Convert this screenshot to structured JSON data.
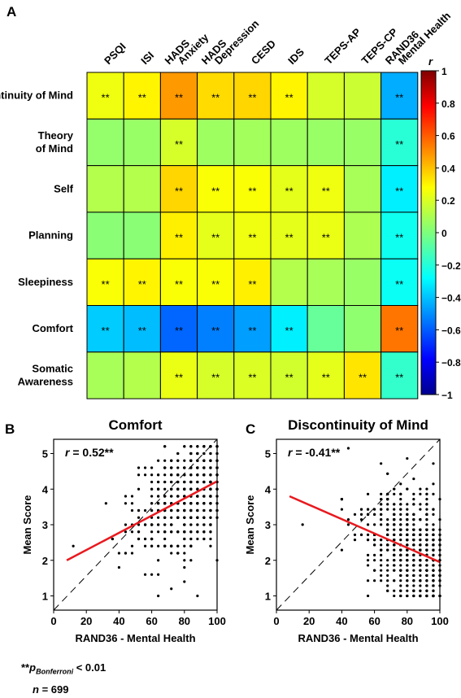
{
  "panels": {
    "a": "A",
    "b": "B",
    "c": "C"
  },
  "footnote": {
    "stars": "**",
    "p_symbol": "p",
    "p_subscript": "Bonferroni",
    "p_rest": "< 0.01",
    "n_symbol": "n",
    "n_rest": "= 699"
  },
  "chart_data": [
    {
      "type": "heatmap",
      "columns": [
        "PSQI",
        "ISI",
        "HADS Anxiety",
        "HADS Depression",
        "CESD",
        "IDS",
        "TEPS-AP",
        "TEPS-CP",
        "RAND36 Mental Health"
      ],
      "column_lines": [
        [
          "PSQI"
        ],
        [
          "ISI"
        ],
        [
          "HADS",
          "Anxiety"
        ],
        [
          "HADS",
          "Depression"
        ],
        [
          "CESD"
        ],
        [
          "IDS"
        ],
        [
          "TEPS-AP"
        ],
        [
          "TEPS-CP"
        ],
        [
          "RAND36",
          "Mental Health"
        ]
      ],
      "rows": [
        "Discontinuity of Mind",
        "Theory of Mind",
        "Self",
        "Planning",
        "Sleepiness",
        "Comfort",
        "Somatic Awareness"
      ],
      "row_lines": [
        [
          "Discontinuity of Mind"
        ],
        [
          "Theory",
          "of Mind"
        ],
        [
          "Self"
        ],
        [
          "Planning"
        ],
        [
          "Sleepiness"
        ],
        [
          "Comfort"
        ],
        [
          "Somatic",
          "Awareness"
        ]
      ],
      "values": [
        [
          0.22,
          0.27,
          0.45,
          0.32,
          0.33,
          0.27,
          0.17,
          0.15,
          -0.41
        ],
        [
          0.04,
          0.05,
          0.17,
          0.06,
          0.07,
          0.06,
          0.05,
          0.05,
          -0.17
        ],
        [
          0.1,
          0.1,
          0.33,
          0.24,
          0.24,
          0.2,
          0.22,
          0.08,
          -0.28
        ],
        [
          0.02,
          0.02,
          0.28,
          0.2,
          0.22,
          0.2,
          0.21,
          0.09,
          -0.22
        ],
        [
          0.24,
          0.27,
          0.24,
          0.24,
          0.28,
          0.1,
          0.08,
          0.05,
          -0.23
        ],
        [
          -0.35,
          -0.38,
          -0.55,
          -0.5,
          -0.44,
          -0.28,
          -0.05,
          0.03,
          0.52
        ],
        [
          0.08,
          0.1,
          0.21,
          0.17,
          0.18,
          0.16,
          0.2,
          0.3,
          -0.15
        ]
      ],
      "significant": [
        [
          1,
          1,
          1,
          1,
          1,
          1,
          0,
          0,
          1
        ],
        [
          0,
          0,
          1,
          0,
          0,
          0,
          0,
          0,
          1
        ],
        [
          0,
          0,
          1,
          1,
          1,
          1,
          1,
          0,
          1
        ],
        [
          0,
          0,
          1,
          1,
          1,
          1,
          1,
          0,
          1
        ],
        [
          1,
          1,
          1,
          1,
          1,
          0,
          0,
          0,
          1
        ],
        [
          1,
          1,
          1,
          1,
          1,
          1,
          0,
          0,
          1
        ],
        [
          0,
          0,
          1,
          1,
          1,
          1,
          1,
          1,
          1
        ]
      ],
      "sig_marker": "**",
      "colorbar": {
        "label": "r",
        "min": -1,
        "max": 1,
        "ticks": [
          1,
          0.8,
          0.6,
          0.4,
          0.2,
          0,
          -0.2,
          -0.4,
          -0.6,
          -0.8,
          -1
        ],
        "colormap": "jet"
      }
    },
    {
      "type": "scatter",
      "title": "Comfort",
      "annotation_symbol": "r",
      "annotation_value": "= 0.52**",
      "xlabel": "RAND36 - Mental Health",
      "ylabel": "Mean Score",
      "xlim": [
        0,
        100
      ],
      "ylim": [
        0.6,
        5.4
      ],
      "xticks": [
        0,
        20,
        40,
        60,
        80,
        100
      ],
      "yticks": [
        1,
        2,
        3,
        4,
        5
      ],
      "fit_line": {
        "x": [
          8,
          100
        ],
        "y": [
          2.0,
          4.22
        ],
        "color": "#e8191e"
      },
      "identity_line": {
        "x": [
          0,
          100
        ],
        "y": [
          0.6,
          5.4
        ]
      },
      "point_summary": {
        "n": 699,
        "x_levels_step": 4,
        "y_levels_step": 0.2
      }
    },
    {
      "type": "scatter",
      "title": "Discontinuity of Mind",
      "annotation_symbol": "r",
      "annotation_value": "= -0.41**",
      "xlabel": "RAND36 - Mental Health",
      "ylabel": "Mean Score",
      "xlim": [
        0,
        100
      ],
      "ylim": [
        0.6,
        5.4
      ],
      "xticks": [
        0,
        20,
        40,
        60,
        80,
        100
      ],
      "yticks": [
        1,
        2,
        3,
        4,
        5
      ],
      "fit_line": {
        "x": [
          8,
          100
        ],
        "y": [
          3.8,
          1.95
        ],
        "color": "#e8191e"
      },
      "identity_line": {
        "x": [
          0,
          100
        ],
        "y": [
          0.6,
          5.4
        ]
      },
      "point_summary": {
        "n": 699,
        "x_levels_step": 4,
        "y_levels_step": 0.143
      }
    }
  ]
}
